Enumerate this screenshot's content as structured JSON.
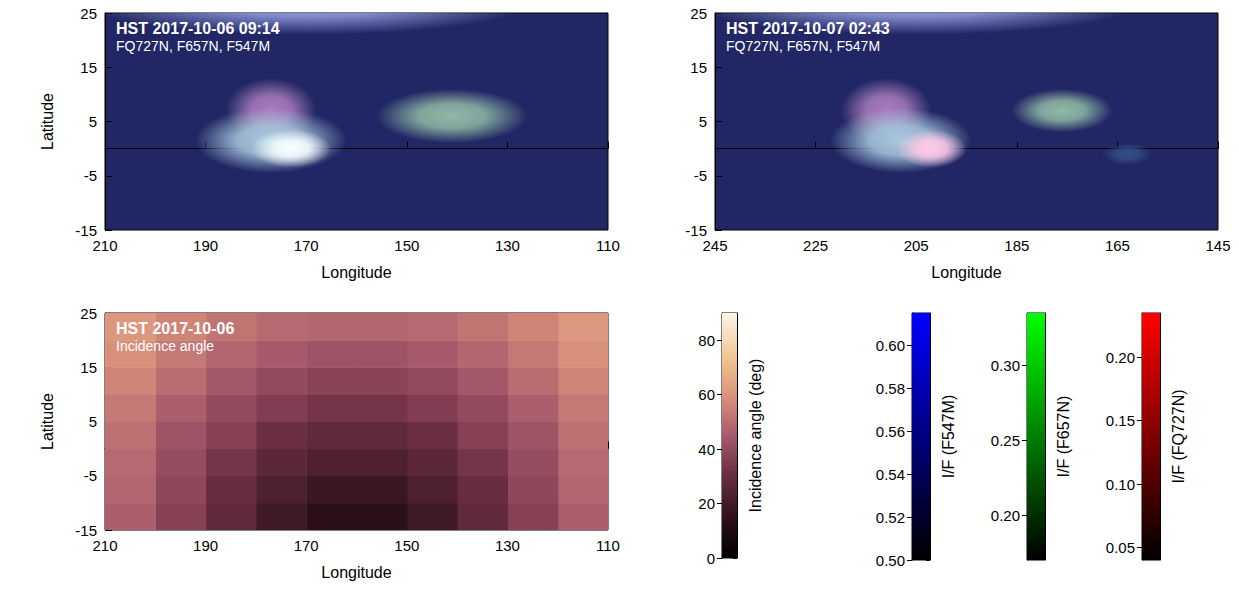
{
  "chart_data": [
    {
      "type": "image",
      "label": "HST",
      "time": "2017-10-06 09:14",
      "filters": "FQ727N, F657N, F547M",
      "xlabel": "Longitude",
      "ylabel": "Latitude",
      "xlim": [
        210,
        110
      ],
      "xticks": [
        110,
        130,
        150,
        170,
        190,
        210
      ],
      "ylim": [
        -15,
        25
      ],
      "yticks": [
        -15,
        -5,
        5,
        15,
        25
      ],
      "grid": false,
      "background": {
        "F547M": 0.545,
        "F657N": 0.195,
        "FQ727N": 0.065
      },
      "features": [
        {
          "lon": 170,
          "lat": 27,
          "lon_extent": 45,
          "lat_extent": 6,
          "F547M": 0.6,
          "F657N": 0.27,
          "FQ727N": 0.15
        },
        {
          "lon": 177,
          "lat": 7,
          "lon_extent": 9,
          "lat_extent": 6,
          "F547M": 0.585,
          "F657N": 0.25,
          "FQ727N": 0.17
        },
        {
          "lon": 177,
          "lat": 1.5,
          "lon_extent": 15,
          "lat_extent": 6,
          "F547M": 0.6,
          "F657N": 0.3,
          "FQ727N": 0.17
        },
        {
          "lon": 173,
          "lat": 0,
          "lon_extent": 8,
          "lat_extent": 3.5,
          "F547M": 0.615,
          "F657N": 0.335,
          "FQ727N": 0.23
        },
        {
          "lon": 141,
          "lat": 6,
          "lon_extent": 15,
          "lat_extent": 5,
          "F547M": 0.575,
          "F657N": 0.29,
          "FQ727N": 0.15
        }
      ]
    },
    {
      "type": "image",
      "label": "HST",
      "time": "2017-10-07 02:43",
      "filters": "FQ727N, F657N, F547M",
      "xlabel": "Longitude",
      "xlim": [
        245,
        145
      ],
      "xticks": [
        145,
        165,
        185,
        205,
        225,
        245
      ],
      "ylim": [
        -15,
        25
      ],
      "yticks": [
        -15,
        -5,
        5,
        15,
        25
      ],
      "grid": false,
      "background": {
        "F547M": 0.545,
        "F657N": 0.195,
        "FQ727N": 0.065
      },
      "features": [
        {
          "lon": 205,
          "lat": 27,
          "lon_extent": 45,
          "lat_extent": 6,
          "F547M": 0.6,
          "F657N": 0.27,
          "FQ727N": 0.15
        },
        {
          "lon": 211,
          "lat": 7,
          "lon_extent": 9,
          "lat_extent": 6,
          "F547M": 0.585,
          "F657N": 0.25,
          "FQ727N": 0.17
        },
        {
          "lon": 208,
          "lat": 1.5,
          "lon_extent": 14,
          "lat_extent": 6,
          "F547M": 0.6,
          "F657N": 0.3,
          "FQ727N": 0.17
        },
        {
          "lon": 202,
          "lat": 0,
          "lon_extent": 7,
          "lat_extent": 3.5,
          "F547M": 0.605,
          "F657N": 0.3,
          "FQ727N": 0.235
        },
        {
          "lon": 176,
          "lat": 7,
          "lon_extent": 10,
          "lat_extent": 4,
          "F547M": 0.575,
          "F657N": 0.29,
          "FQ727N": 0.15
        },
        {
          "lon": 163,
          "lat": -1,
          "lon_extent": 5,
          "lat_extent": 2,
          "F547M": 0.56,
          "F657N": 0.22,
          "FQ727N": 0.08
        }
      ]
    },
    {
      "type": "heatmap",
      "title": "HST 2017-10-06",
      "subtitle": "Incidence angle",
      "xlabel": "Longitude",
      "ylabel": "Latitude",
      "xlim": [
        210,
        110
      ],
      "xticks": [
        110,
        130,
        150,
        170,
        190,
        210
      ],
      "ylim": [
        -15,
        25
      ],
      "yticks": [
        -15,
        -5,
        5,
        15,
        25
      ],
      "grid": false,
      "cell_size": [
        10,
        5
      ],
      "cells": [
        [
          115,
          -12.5,
          46
        ],
        [
          125,
          -12.5,
          37
        ],
        [
          135,
          -12.5,
          28
        ],
        [
          145,
          -12.5,
          19
        ],
        [
          155,
          -12.5,
          14
        ],
        [
          165,
          -12.5,
          14
        ],
        [
          175,
          -12.5,
          19
        ],
        [
          185,
          -12.5,
          28
        ],
        [
          195,
          -12.5,
          37
        ],
        [
          205,
          -12.5,
          46
        ],
        [
          115,
          -7.5,
          48
        ],
        [
          125,
          -7.5,
          39
        ],
        [
          135,
          -7.5,
          30
        ],
        [
          145,
          -7.5,
          23
        ],
        [
          155,
          -7.5,
          18
        ],
        [
          165,
          -7.5,
          18
        ],
        [
          175,
          -7.5,
          23
        ],
        [
          185,
          -7.5,
          30
        ],
        [
          195,
          -7.5,
          39
        ],
        [
          205,
          -7.5,
          48
        ],
        [
          115,
          -2.5,
          49
        ],
        [
          125,
          -2.5,
          41
        ],
        [
          135,
          -2.5,
          33
        ],
        [
          145,
          -2.5,
          27
        ],
        [
          155,
          -2.5,
          23
        ],
        [
          165,
          -2.5,
          23
        ],
        [
          175,
          -2.5,
          27
        ],
        [
          185,
          -2.5,
          33
        ],
        [
          195,
          -2.5,
          41
        ],
        [
          205,
          -2.5,
          49
        ],
        [
          115,
          2.5,
          51
        ],
        [
          125,
          2.5,
          43
        ],
        [
          135,
          2.5,
          37
        ],
        [
          145,
          2.5,
          31
        ],
        [
          155,
          2.5,
          28
        ],
        [
          165,
          2.5,
          28
        ],
        [
          175,
          2.5,
          31
        ],
        [
          185,
          2.5,
          37
        ],
        [
          195,
          2.5,
          43
        ],
        [
          205,
          2.5,
          51
        ],
        [
          115,
          7.5,
          53
        ],
        [
          125,
          7.5,
          46
        ],
        [
          135,
          7.5,
          40
        ],
        [
          145,
          7.5,
          36
        ],
        [
          155,
          7.5,
          33
        ],
        [
          165,
          7.5,
          33
        ],
        [
          175,
          7.5,
          36
        ],
        [
          185,
          7.5,
          40
        ],
        [
          195,
          7.5,
          46
        ],
        [
          205,
          7.5,
          53
        ],
        [
          115,
          12.5,
          56
        ],
        [
          125,
          12.5,
          50
        ],
        [
          135,
          12.5,
          44
        ],
        [
          145,
          12.5,
          40
        ],
        [
          155,
          12.5,
          38
        ],
        [
          165,
          12.5,
          38
        ],
        [
          175,
          12.5,
          40
        ],
        [
          185,
          12.5,
          44
        ],
        [
          195,
          12.5,
          50
        ],
        [
          205,
          12.5,
          56
        ],
        [
          115,
          17.5,
          59
        ],
        [
          125,
          17.5,
          53
        ],
        [
          135,
          17.5,
          48
        ],
        [
          145,
          17.5,
          45
        ],
        [
          155,
          17.5,
          43
        ],
        [
          165,
          17.5,
          43
        ],
        [
          175,
          17.5,
          45
        ],
        [
          185,
          17.5,
          48
        ],
        [
          195,
          17.5,
          53
        ],
        [
          205,
          17.5,
          59
        ],
        [
          115,
          22.5,
          61
        ],
        [
          125,
          22.5,
          56
        ],
        [
          135,
          22.5,
          52
        ],
        [
          145,
          22.5,
          49
        ],
        [
          155,
          22.5,
          48
        ],
        [
          165,
          22.5,
          48
        ],
        [
          175,
          22.5,
          49
        ],
        [
          185,
          22.5,
          52
        ],
        [
          195,
          22.5,
          56
        ],
        [
          205,
          22.5,
          61
        ]
      ],
      "colorbar": {
        "label": "Incidence angle (deg)",
        "range": [
          0,
          90
        ],
        "ticks": [
          0,
          20,
          40,
          60,
          80
        ]
      }
    },
    {
      "type": "colorbar",
      "filter": "F547M",
      "label": "I/F (F547M)",
      "color": "#0000ff",
      "range": [
        0.5,
        0.615
      ],
      "ticks": [
        {
          "value": 0.5,
          "label": "0.50"
        },
        0.52,
        0.54,
        0.56,
        0.58,
        {
          "value": 0.6,
          "label": "0.60"
        }
      ]
    },
    {
      "type": "colorbar",
      "filter": "F657N",
      "label": "I/F (F657N)",
      "color": "#00ff00",
      "range": [
        0.17,
        0.335
      ],
      "ticks": [
        {
          "value": 0.2,
          "label": "0.20"
        },
        0.25,
        {
          "value": 0.3,
          "label": "0.30"
        }
      ]
    },
    {
      "type": "colorbar",
      "filter": "FQ727N",
      "label": "I/F (FQ727N)",
      "color": "#ff0000",
      "range": [
        0.04,
        0.235
      ],
      "ticks": [
        0.05,
        {
          "value": 0.1,
          "label": "0.10"
        },
        0.15,
        {
          "value": 0.2,
          "label": "0.20"
        }
      ]
    }
  ]
}
